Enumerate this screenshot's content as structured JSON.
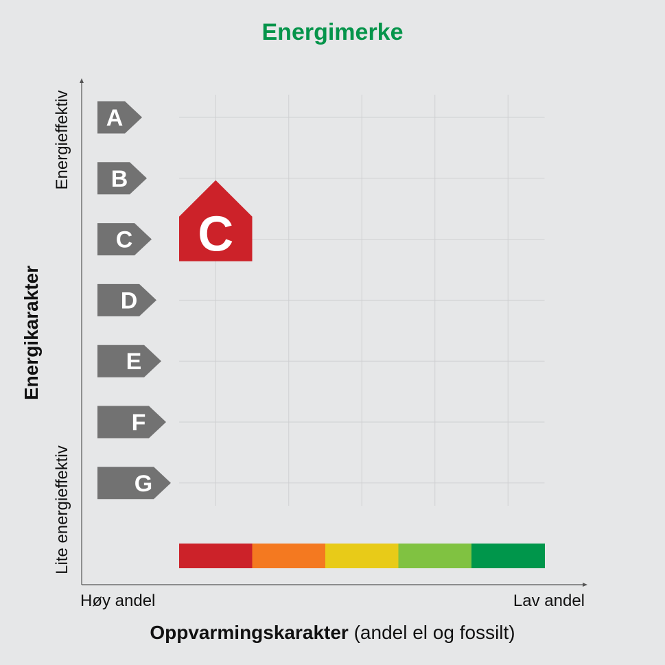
{
  "title": "Energimerke",
  "chart_data": {
    "type": "matrix",
    "y_axis": {
      "label": "Energikarakter",
      "top_label": "Energieffektiv",
      "bottom_label": "Lite energieffektiv",
      "grades": [
        "A",
        "B",
        "C",
        "D",
        "E",
        "F",
        "G"
      ]
    },
    "x_axis": {
      "label_bold": "Oppvarmingskarakter",
      "label_rest": " (andel el og fossilt)",
      "left_end": "Høy andel",
      "right_end": "Lav andel",
      "scale_colors": [
        "#cc2229",
        "#f47920",
        "#e8cb18",
        "#80c241",
        "#00964b"
      ]
    },
    "rating": {
      "energy_grade": "C",
      "heating_grade_index": 1,
      "heating_grade_color": "#cc2229"
    },
    "grade_arrow_color": "#727272",
    "grid": true
  }
}
